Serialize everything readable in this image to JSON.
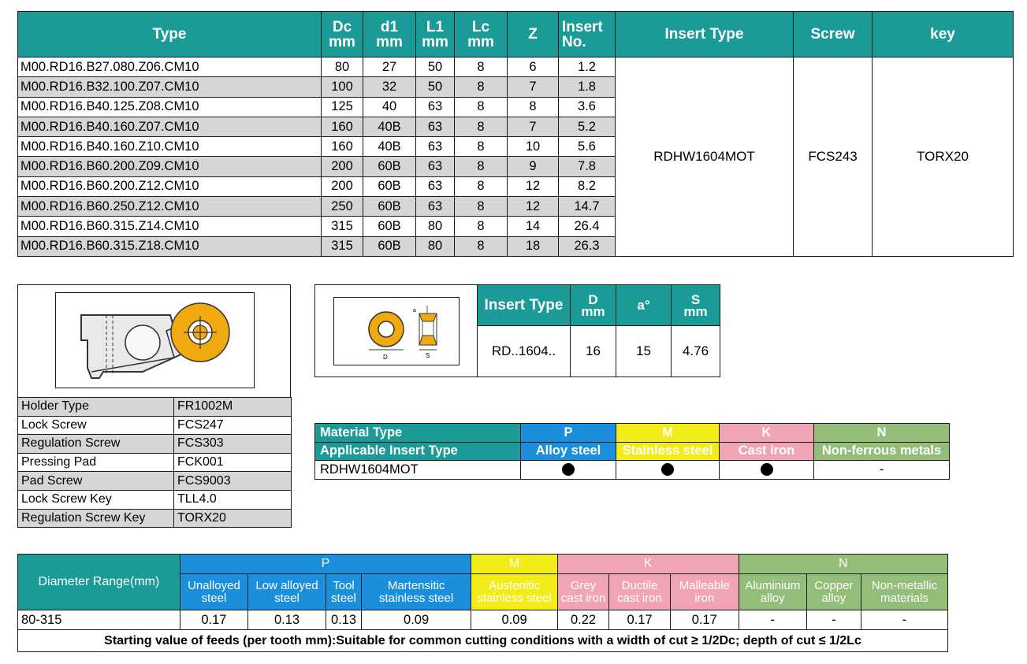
{
  "main": {
    "headers": [
      {
        "top": "Type",
        "bottom": ""
      },
      {
        "top": "Dc",
        "bottom": "mm"
      },
      {
        "top": "d1",
        "bottom": "mm"
      },
      {
        "top": "L1",
        "bottom": "mm"
      },
      {
        "top": "Lc",
        "bottom": "mm"
      },
      {
        "top": "Z",
        "bottom": ""
      },
      {
        "top": "Insert",
        "bottom": "No."
      },
      {
        "top": "Insert Type",
        "bottom": ""
      },
      {
        "top": "Screw",
        "bottom": ""
      },
      {
        "top": "key",
        "bottom": ""
      }
    ],
    "rows": [
      [
        "M00.RD16.B27.080.Z06.CM10",
        "80",
        "27",
        "50",
        "8",
        "6",
        "1.2"
      ],
      [
        "M00.RD16.B32.100.Z07.CM10",
        "100",
        "32",
        "50",
        "8",
        "7",
        "1.8"
      ],
      [
        "M00.RD16.B40.125.Z08.CM10",
        "125",
        "40",
        "63",
        "8",
        "8",
        "3.6"
      ],
      [
        "M00.RD16.B40.160.Z07.CM10",
        "160",
        "40B",
        "63",
        "8",
        "7",
        "5.2"
      ],
      [
        "M00.RD16.B40.160.Z10.CM10",
        "160",
        "40B",
        "63",
        "8",
        "10",
        "5.6"
      ],
      [
        "M00.RD16.B60.200.Z09.CM10",
        "200",
        "60B",
        "63",
        "8",
        "9",
        "7.8"
      ],
      [
        "M00.RD16.B60.200.Z12.CM10",
        "200",
        "60B",
        "63",
        "8",
        "12",
        "8.2"
      ],
      [
        "M00.RD16.B60.250.Z12.CM10",
        "250",
        "60B",
        "63",
        "8",
        "12",
        "14.7"
      ],
      [
        "M00.RD16.B60.315.Z14.CM10",
        "315",
        "60B",
        "80",
        "8",
        "14",
        "26.4"
      ],
      [
        "M00.RD16.B60.315.Z18.CM10",
        "315",
        "60B",
        "80",
        "8",
        "18",
        "26.3"
      ]
    ],
    "insert_type": "RDHW1604MOT",
    "screw": "FCS243",
    "key": "TORX20"
  },
  "holder": {
    "rows": [
      [
        "Holder Type",
        "FR1002M"
      ],
      [
        "Lock Screw",
        "FCS247"
      ],
      [
        "Regulation Screw",
        "FCS303"
      ],
      [
        "Pressing Pad",
        "FCK001"
      ],
      [
        "Pad Screw",
        "FCS9003"
      ],
      [
        "Lock Screw Key",
        "TLL4.0"
      ],
      [
        "Regulation Screw Key",
        "TORX20"
      ]
    ]
  },
  "insert": {
    "headers": [
      {
        "top": "Insert Type",
        "bottom": ""
      },
      {
        "top": "D",
        "bottom": "mm"
      },
      {
        "top": "a°",
        "bottom": ""
      },
      {
        "top": "S",
        "bottom": "mm"
      }
    ],
    "values": [
      "RD..1604..",
      "16",
      "15",
      "4.76"
    ],
    "diagram_labels": {
      "d": "D",
      "s": "S",
      "a": "a"
    }
  },
  "material": {
    "row1_label": "Material Type",
    "row2_label": "Applicable Insert Type",
    "groups": [
      "P",
      "M",
      "K",
      "N"
    ],
    "names": [
      "Alloy steel",
      "Stainless steel",
      "Cast iron",
      "Non-ferrous metals"
    ],
    "insert": "RDHW1604MOT",
    "marks": [
      "dot",
      "dot",
      "dot",
      "-"
    ],
    "dash": "-"
  },
  "feeds": {
    "label": "Diameter Range(mm)",
    "groups": [
      "P",
      "M",
      "K",
      "N"
    ],
    "sub": [
      [
        "Unalloyed",
        "steel"
      ],
      [
        "Low alloyed",
        "steel"
      ],
      [
        "Tool",
        "steel"
      ],
      [
        "Martensitic",
        "stainless steel"
      ],
      [
        "Austenitic",
        "stainless steel"
      ],
      [
        "Grey",
        "cast iron"
      ],
      [
        "Ductile",
        "cast iron"
      ],
      [
        "Malleable",
        "iron"
      ],
      [
        "Aluminium",
        "alloy"
      ],
      [
        "Copper",
        "alloy"
      ],
      [
        "Non-metallic",
        "materials"
      ]
    ],
    "range": "80-315",
    "values": [
      "0.17",
      "0.13",
      "0.13",
      "0.09",
      "0.09",
      "0.22",
      "0.17",
      "0.17",
      "-",
      "-",
      "-"
    ],
    "note": "Starting value of feeds (per tooth mm):Suitable for common cutting conditions with a width of cut ≥ 1/2Dc; depth of cut ≤ 1/2Lc"
  },
  "colors": {
    "teal": "#1a9b97",
    "P": "#1b8fdc",
    "M": "#f2ec18",
    "K": "#f1a5b4",
    "N": "#94bd7a",
    "insert_gold": "#f0aa10"
  }
}
